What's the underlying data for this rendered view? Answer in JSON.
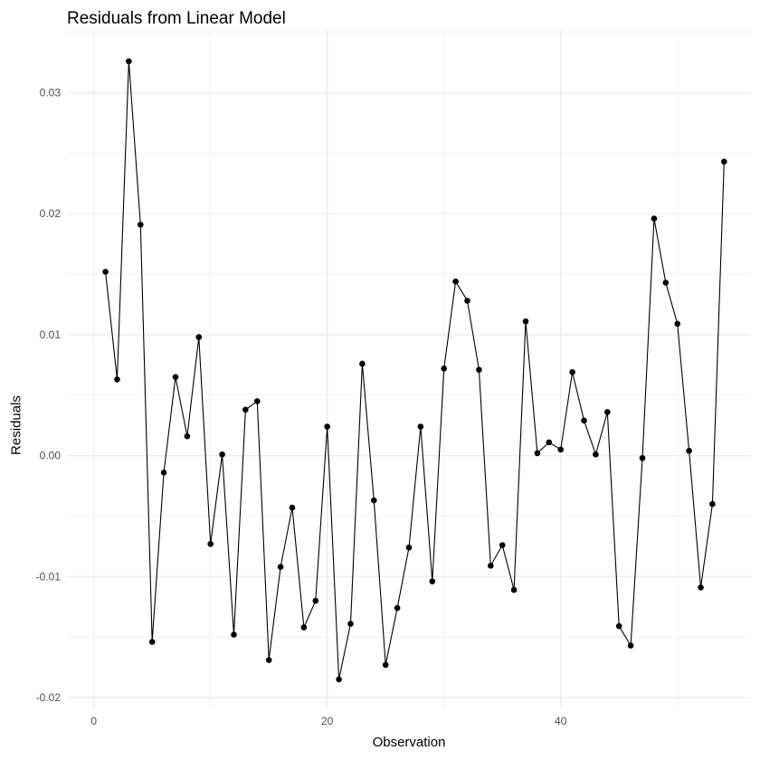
{
  "chart_data": {
    "type": "line",
    "title": "Residuals from Linear Model",
    "xlabel": "Observation",
    "ylabel": "Residuals",
    "x": [
      1,
      2,
      3,
      4,
      5,
      6,
      7,
      8,
      9,
      10,
      11,
      12,
      13,
      14,
      15,
      16,
      17,
      18,
      19,
      20,
      21,
      22,
      23,
      24,
      25,
      26,
      27,
      28,
      29,
      30,
      31,
      32,
      33,
      34,
      35,
      36,
      37,
      38,
      39,
      40,
      41,
      42,
      43,
      44,
      45,
      46,
      47,
      48,
      49,
      50,
      51,
      52,
      53,
      54
    ],
    "series": [
      {
        "name": "Residuals",
        "markers": true,
        "color": "#000000",
        "values": [
          0.0152,
          0.0063,
          0.0326,
          0.0191,
          -0.0154,
          -0.0014,
          0.0065,
          0.0016,
          0.0098,
          -0.0073,
          0.0001,
          -0.0148,
          0.0038,
          0.0045,
          -0.0169,
          -0.0092,
          -0.0043,
          -0.0142,
          -0.012,
          0.0024,
          -0.0185,
          -0.0139,
          0.0076,
          -0.0037,
          -0.0173,
          -0.0126,
          -0.0076,
          0.0024,
          -0.0104,
          0.0072,
          0.0144,
          0.0128,
          0.0071,
          -0.0091,
          -0.0074,
          -0.0111,
          0.0111,
          0.0002,
          0.0011,
          0.0005,
          0.0069,
          0.0029,
          0.0001,
          0.0036,
          -0.0141,
          -0.0157,
          -0.0002,
          0.0196,
          0.0143,
          0.0109,
          0.0004,
          -0.0109,
          -0.004,
          0.0243
        ]
      }
    ],
    "xlim": [
      -2.3,
      56.3
    ],
    "ylim": [
      -0.0209,
      0.0352
    ],
    "x_ticks": [
      0,
      20,
      40
    ],
    "x_tick_labels": [
      "0",
      "20",
      "40"
    ],
    "x_minor_gridlines": [
      10,
      30,
      50
    ],
    "y_ticks": [
      -0.02,
      -0.01,
      0.0,
      0.01,
      0.02,
      0.03
    ],
    "y_tick_labels": [
      "-0.02",
      "-0.01",
      "0.00",
      "0.01",
      "0.02",
      "0.03"
    ],
    "y_minor_gridlines": [
      -0.015,
      -0.005,
      0.005,
      0.015,
      0.025,
      0.035
    ],
    "grid": true,
    "legend": "none",
    "theme": "minimal"
  },
  "colors": {
    "grid_major": "#ebebeb",
    "grid_minor": "#f2f2f2",
    "line": "#000000",
    "point": "#000000",
    "tick_text": "#4d4d4d"
  }
}
